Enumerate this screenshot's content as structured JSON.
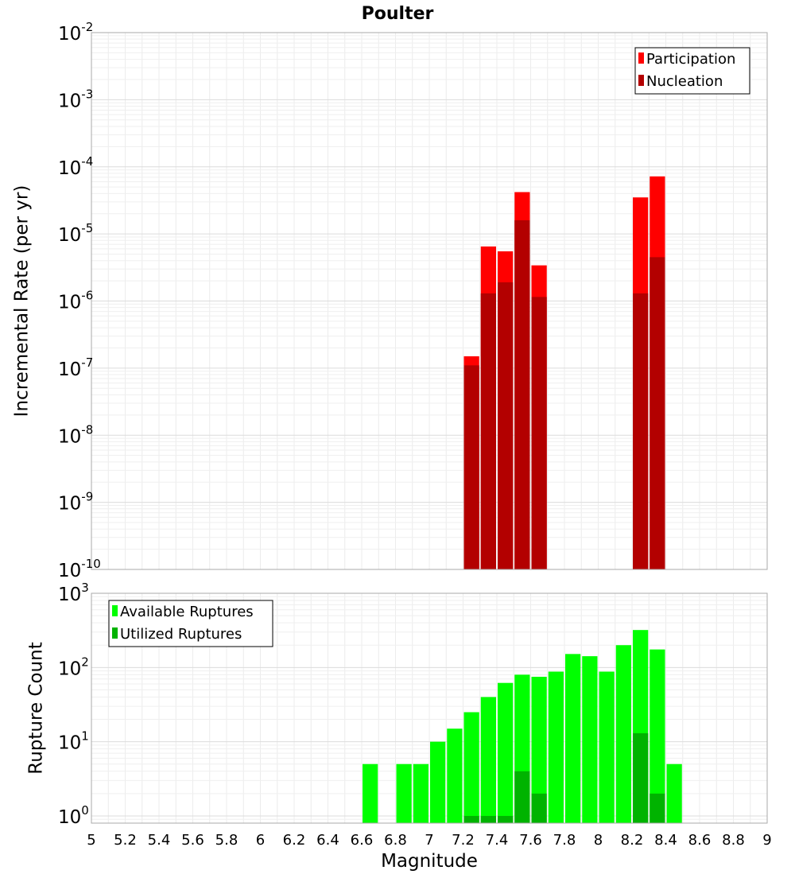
{
  "chart_data": {
    "title": "Poulter",
    "xlabel": "Magnitude",
    "xlim": [
      5,
      9
    ],
    "x_tick_labels": [
      "5",
      "5.2",
      "5.4",
      "5.6",
      "5.8",
      "6",
      "6.2",
      "6.4",
      "6.6",
      "6.8",
      "7",
      "7.2",
      "7.4",
      "7.6",
      "7.8",
      "8",
      "8.2",
      "8.4",
      "8.6",
      "8.8",
      "9"
    ],
    "grid": true,
    "panels": [
      {
        "type": "bar",
        "ylabel": "Incremental Rate (per yr)",
        "yscale": "log",
        "ylim": [
          1e-10,
          0.01
        ],
        "y_tick_labels": [
          {
            "base": "10",
            "exp": "-2"
          },
          {
            "base": "10",
            "exp": "-3"
          },
          {
            "base": "10",
            "exp": "-4"
          },
          {
            "base": "10",
            "exp": "-5"
          },
          {
            "base": "10",
            "exp": "-6"
          },
          {
            "base": "10",
            "exp": "-7"
          },
          {
            "base": "10",
            "exp": "-8"
          },
          {
            "base": "10",
            "exp": "-9"
          },
          {
            "base": "10",
            "exp": "-10"
          }
        ],
        "legend_position": "top-right",
        "series": [
          {
            "name": "Participation",
            "color": "#ff0000",
            "x": [
              7.25,
              7.35,
              7.45,
              7.55,
              7.65,
              8.25,
              8.35
            ],
            "values": [
              1.5e-07,
              6.5e-06,
              5.5e-06,
              4.2e-05,
              3.4e-06,
              3.5e-05,
              7.2e-05
            ]
          },
          {
            "name": "Nucleation",
            "color": "#b30000",
            "x": [
              7.25,
              7.35,
              7.45,
              7.55,
              7.65,
              8.25,
              8.35
            ],
            "values": [
              1.1e-07,
              1.3e-06,
              1.9e-06,
              1.6e-05,
              1.15e-06,
              1.3e-06,
              4.5e-06
            ]
          }
        ]
      },
      {
        "type": "bar",
        "ylabel": "Rupture Count",
        "yscale": "log",
        "ylim": [
          0.8,
          1000
        ],
        "y_tick_labels": [
          {
            "base": "10",
            "exp": "3"
          },
          {
            "base": "10",
            "exp": "2"
          },
          {
            "base": "10",
            "exp": "1"
          },
          {
            "base": "10",
            "exp": "0"
          }
        ],
        "legend_position": "top-left",
        "series": [
          {
            "name": "Available Ruptures",
            "color": "#00ff00",
            "x": [
              6.65,
              6.85,
              6.95,
              7.05,
              7.15,
              7.25,
              7.35,
              7.45,
              7.55,
              7.65,
              7.75,
              7.85,
              7.95,
              8.05,
              8.15,
              8.25,
              8.35,
              8.45
            ],
            "values": [
              5,
              5,
              5,
              10,
              15,
              25,
              40,
              62,
              80,
              75,
              88,
              152,
              142,
              88,
              200,
              320,
              175,
              5
            ]
          },
          {
            "name": "Utilized Ruptures",
            "color": "#00b300",
            "x": [
              7.25,
              7.35,
              7.45,
              7.55,
              7.65,
              8.25,
              8.35
            ],
            "values": [
              1,
              1,
              1,
              4,
              2,
              13,
              2
            ]
          }
        ]
      }
    ]
  }
}
